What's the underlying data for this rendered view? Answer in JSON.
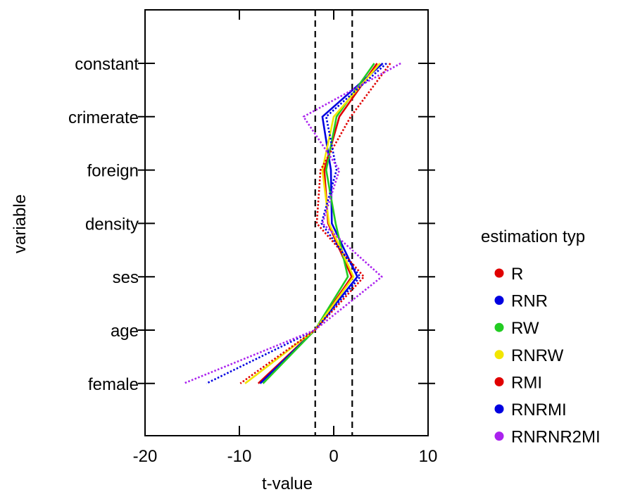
{
  "chart_data": {
    "type": "line",
    "title": "",
    "xlabel": "t-value",
    "ylabel": "variable",
    "xlim": [
      -20,
      10
    ],
    "xticks": [
      -20,
      -10,
      0,
      10
    ],
    "categories": [
      "constant",
      "crimerate",
      "foreign",
      "density",
      "ses",
      "age",
      "female"
    ],
    "reference_lines_x": [
      -1.96,
      1.96
    ],
    "legend": {
      "title": "estimation typ",
      "position": "right"
    },
    "series": [
      {
        "name": "R",
        "color": "#e00000",
        "dash": "solid",
        "values": [
          4.6,
          0.6,
          -1.0,
          -0.6,
          1.9,
          -2.0,
          -8.0
        ]
      },
      {
        "name": "RNR",
        "color": "#0000e0",
        "dash": "solid",
        "values": [
          5.2,
          -1.2,
          -0.3,
          -0.2,
          2.5,
          -2.0,
          -7.8
        ]
      },
      {
        "name": "RW",
        "color": "#22cc22",
        "dash": "solid",
        "values": [
          4.3,
          0.3,
          -0.8,
          0.2,
          1.5,
          -2.0,
          -7.5
        ]
      },
      {
        "name": "RNRW",
        "color": "#f2e600",
        "dash": "solid",
        "values": [
          4.9,
          0.0,
          -1.2,
          -0.5,
          2.1,
          -2.0,
          -9.4
        ]
      },
      {
        "name": "RMI",
        "color": "#e00000",
        "dash": "dotted",
        "values": [
          6.0,
          1.8,
          -1.4,
          -1.8,
          3.2,
          -2.0,
          -9.9
        ]
      },
      {
        "name": "RNRMI",
        "color": "#0000e0",
        "dash": "dotted",
        "values": [
          5.6,
          -0.8,
          0.3,
          -1.3,
          2.8,
          -2.0,
          -13.5
        ]
      },
      {
        "name": "RNRNR2MI",
        "color": "#aa22ee",
        "dash": "dotted",
        "values": [
          7.1,
          -3.2,
          0.6,
          -1.2,
          5.1,
          -2.0,
          -15.9
        ]
      }
    ]
  }
}
